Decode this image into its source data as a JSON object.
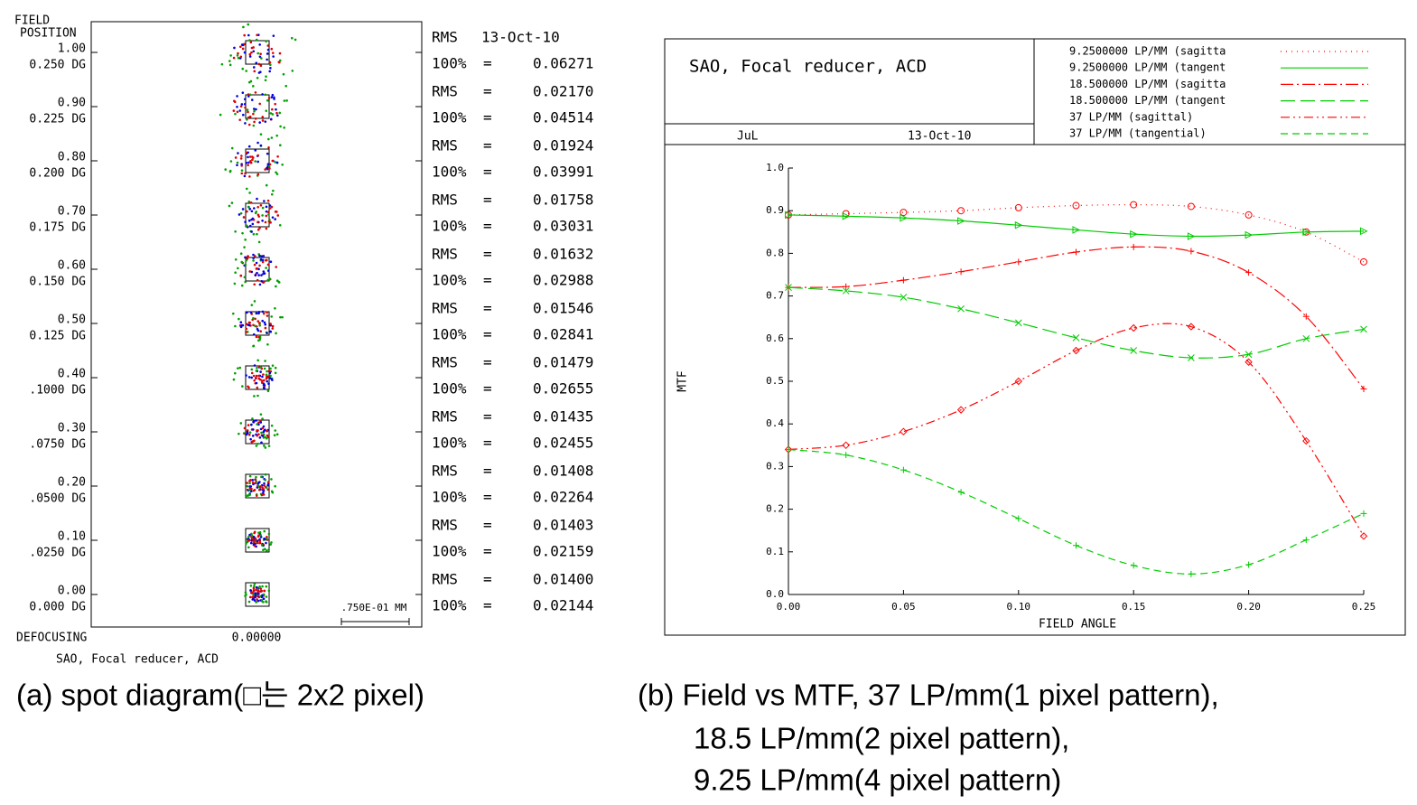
{
  "spot_diagram": {
    "header": [
      "FIELD",
      "POSITION"
    ],
    "date": "13-Oct-10",
    "rms_label": "RMS",
    "p100_label": "100%",
    "equals": "=",
    "rows": [
      {
        "field": "1.00",
        "angle": "0.250 DG",
        "p100": "0.06271"
      },
      {
        "field": "0.90",
        "angle": "0.225 DG",
        "rms": "0.02170",
        "p100": "0.04514"
      },
      {
        "field": "0.80",
        "angle": "0.200 DG",
        "rms": "0.01924",
        "p100": "0.03991"
      },
      {
        "field": "0.70",
        "angle": "0.175 DG",
        "rms": "0.01758",
        "p100": "0.03031"
      },
      {
        "field": "0.60",
        "angle": "0.150 DG",
        "rms": "0.01632",
        "p100": "0.02988"
      },
      {
        "field": "0.50",
        "angle": "0.125 DG",
        "rms": "0.01546",
        "p100": "0.02841"
      },
      {
        "field": "0.40",
        "angle": ".1000 DG",
        "rms": "0.01479",
        "p100": "0.02655"
      },
      {
        "field": "0.30",
        "angle": ".0750 DG",
        "rms": "0.01435",
        "p100": "0.02455"
      },
      {
        "field": "0.20",
        "angle": ".0500 DG",
        "rms": "0.01408",
        "p100": "0.02264"
      },
      {
        "field": "0.10",
        "angle": ".0250 DG",
        "rms": "0.01403",
        "p100": "0.02159"
      },
      {
        "field": "0.00",
        "angle": "0.000 DG",
        "rms": "0.01400",
        "p100": "0.02144"
      }
    ],
    "defocus_label": "DEFOCUSING",
    "defocus_value": "0.00000",
    "footer": "SAO, Focal reducer, ACD",
    "scale_label": ".750E-01 MM",
    "caption": "(a) spot diagram(□는 2x2 pixel)"
  },
  "chart_data": {
    "type": "line",
    "title": "SAO, Focal reducer, ACD",
    "author": "JuL",
    "date": "13-Oct-10",
    "xlabel": "FIELD ANGLE",
    "ylabel": "MTF",
    "x": [
      0,
      0.025,
      0.05,
      0.075,
      0.1,
      0.125,
      0.15,
      0.175,
      0.2,
      0.225,
      0.25
    ],
    "xlim": [
      0,
      0.25
    ],
    "xticks": [
      {
        "value": 0,
        "label": "0.00"
      },
      0.05,
      {
        "value": 0.1,
        "label": "0.10"
      },
      0.15,
      {
        "value": 0.2,
        "label": "0.20"
      },
      0.25
    ],
    "ylim": [
      0,
      1
    ],
    "yticks": [
      {
        "value": 0,
        "label": "0.0"
      },
      0.1,
      0.2,
      0.3,
      0.4,
      0.5,
      0.6,
      0.7,
      0.8,
      0.9,
      {
        "value": 1,
        "label": "1.0"
      }
    ],
    "series": [
      {
        "name": "9.2500000 LP/MM (sagitta",
        "color": "#ff0000",
        "dash": "1,5",
        "marker": "circle",
        "values": [
          0.89,
          0.893,
          0.896,
          0.9,
          0.907,
          0.912,
          0.914,
          0.91,
          0.89,
          0.85,
          0.78
        ]
      },
      {
        "name": "9.2500000 LP/MM (tangent",
        "color": "#00cc00",
        "dash": "none",
        "marker": "triangle",
        "values": [
          0.89,
          0.887,
          0.883,
          0.876,
          0.866,
          0.855,
          0.845,
          0.84,
          0.843,
          0.85,
          0.852
        ]
      },
      {
        "name": "18.500000 LP/MM (sagitta",
        "color": "#ff0000",
        "dash": "14,4,2,4",
        "marker": "plus",
        "values": [
          0.72,
          0.722,
          0.737,
          0.757,
          0.78,
          0.803,
          0.815,
          0.805,
          0.755,
          0.652,
          0.482
        ]
      },
      {
        "name": "18.500000 LP/MM (tangent",
        "color": "#00cc00",
        "dash": "16,6",
        "marker": "cross",
        "values": [
          0.72,
          0.712,
          0.697,
          0.67,
          0.637,
          0.602,
          0.572,
          0.555,
          0.563,
          0.6,
          0.622
        ]
      },
      {
        "name": "37 LP/MM (sagittal)",
        "color": "#ff0000",
        "dash": "10,4,2,4,2,4",
        "marker": "diamond",
        "values": [
          0.34,
          0.35,
          0.382,
          0.433,
          0.5,
          0.572,
          0.625,
          0.628,
          0.545,
          0.36,
          0.137
        ]
      },
      {
        "name": "37 LP/MM (tangential)",
        "color": "#00cc00",
        "dash": "8,5",
        "marker": "plus",
        "values": [
          0.34,
          0.327,
          0.292,
          0.24,
          0.178,
          0.115,
          0.068,
          0.048,
          0.07,
          0.128,
          0.19
        ]
      }
    ]
  },
  "caption_b": [
    "(b) Field vs MTF, 37 LP/mm(1 pixel pattern),",
    "18.5 LP/mm(2 pixel pattern),",
    "9.25 LP/mm(4 pixel pattern)"
  ]
}
